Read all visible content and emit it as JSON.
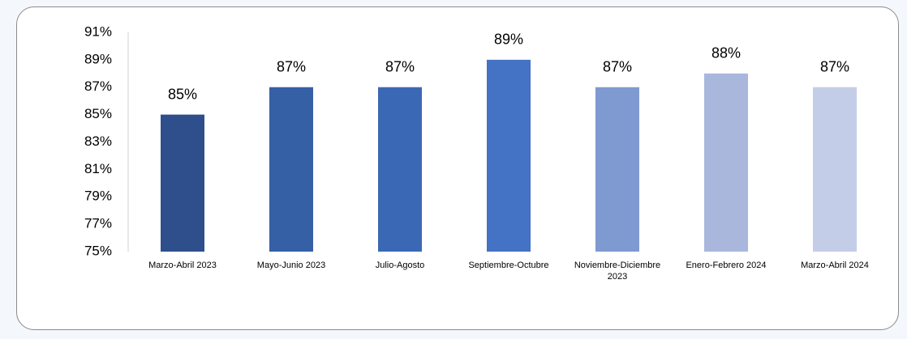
{
  "chart_data": {
    "type": "bar",
    "categories": [
      "Marzo-Abril 2023",
      "Mayo-Junio 2023",
      "Julio-Agosto",
      "Septiembre-Octubre",
      "Noviembre-Diciembre 2023",
      "Enero-Febrero 2024",
      "Marzo-Abril 2024"
    ],
    "values": [
      85,
      87,
      87,
      89,
      87,
      88,
      87
    ],
    "value_labels": [
      "85%",
      "87%",
      "87%",
      "89%",
      "87%",
      "88%",
      "87%"
    ],
    "colors": [
      "#2e4f8c",
      "#3560a6",
      "#3b68b5",
      "#4472c4",
      "#7f9ad1",
      "#a9b7dc",
      "#c4cde8"
    ],
    "ylim": [
      75,
      91
    ],
    "yticks": [
      {
        "value": 75,
        "label": "75%"
      },
      {
        "value": 77,
        "label": "77%"
      },
      {
        "value": 79,
        "label": "79%"
      },
      {
        "value": 81,
        "label": "81%"
      },
      {
        "value": 83,
        "label": "83%"
      },
      {
        "value": 85,
        "label": "85%"
      },
      {
        "value": 87,
        "label": "87%"
      },
      {
        "value": 89,
        "label": "89%"
      },
      {
        "value": 91,
        "label": "91%"
      }
    ],
    "grid": false
  }
}
